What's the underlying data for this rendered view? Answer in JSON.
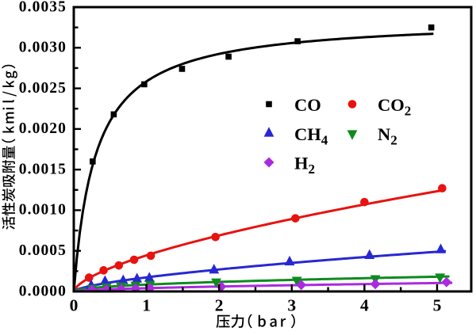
{
  "figure": {
    "background": "#ffffff",
    "axis_color": "#000000",
    "text_color": "#000000"
  },
  "chart_data": {
    "type": "scatter",
    "xlabel": "压力（bar）",
    "ylabel": "活性炭吸附量（kmil/kg）",
    "xlim": [
      0,
      5.47
    ],
    "ylim": [
      0,
      0.0035
    ],
    "x_major_ticks": [
      0,
      1,
      2,
      3,
      4,
      5
    ],
    "x_tick_labels": [
      "0",
      "1",
      "2",
      "3",
      "4",
      "5"
    ],
    "x_minor_ticks": [
      0.5,
      1.5,
      2.5,
      3.5,
      4.5
    ],
    "y_major_ticks": [
      0.0,
      0.0005,
      0.001,
      0.0015,
      0.002,
      0.0025,
      0.003,
      0.0035
    ],
    "y_tick_labels": [
      "0.0000",
      "0.0005",
      "0.0010",
      "0.0015",
      "0.0020",
      "0.0025",
      "0.0030",
      "0.0035"
    ],
    "y_minor_ticks": [
      0.00025,
      0.00075,
      0.00125,
      0.00175,
      0.00225,
      0.00275,
      0.00325
    ],
    "grid": false,
    "legend_position": "inside upper right",
    "series": [
      {
        "name": "CO",
        "legend_main": "CO",
        "legend_sub": "",
        "color": "#000000",
        "marker": "square",
        "points": [
          [
            0.26,
            0.0016
          ],
          [
            0.55,
            0.00218
          ],
          [
            0.97,
            0.00255
          ],
          [
            1.49,
            0.00274
          ],
          [
            2.13,
            0.00289
          ],
          [
            3.08,
            0.00308
          ],
          [
            4.92,
            0.00325
          ]
        ],
        "fit": {
          "model": "langmuir",
          "a": 0.011157,
          "b": 3.3155,
          "x_end": 4.95
        }
      },
      {
        "name": "CO2",
        "legend_main": "CO",
        "legend_sub": "2",
        "color": "#e8120f",
        "marker": "circle",
        "points": [
          [
            0.21,
            0.00017
          ],
          [
            0.41,
            0.00026
          ],
          [
            0.62,
            0.00032
          ],
          [
            0.83,
            0.00039
          ],
          [
            1.06,
            0.00044
          ],
          [
            1.95,
            0.00067
          ],
          [
            3.05,
            0.0009
          ],
          [
            4.0,
            0.0011
          ],
          [
            5.07,
            0.00127
          ]
        ],
        "fit": {
          "model": "freundlich",
          "k": 0.000444269,
          "n": 0.6344,
          "x_end": 5.09
        }
      },
      {
        "name": "CH4",
        "legend_main": "CH",
        "legend_sub": "4",
        "color": "#2727d4",
        "marker": "triangle-up",
        "points": [
          [
            0.24,
            7e-05
          ],
          [
            0.43,
            0.00012
          ],
          [
            0.68,
            0.00013
          ],
          [
            0.87,
            0.00015
          ],
          [
            1.04,
            0.00016
          ],
          [
            1.93,
            0.00026
          ],
          [
            2.97,
            0.00036
          ],
          [
            4.07,
            0.00044
          ],
          [
            5.05,
            0.00051
          ]
        ],
        "fit": {
          "model": "freundlich",
          "k": 0.000173202,
          "n": 0.6442,
          "x_end": 5.12
        }
      },
      {
        "name": "N2",
        "legend_main": "N",
        "legend_sub": "2",
        "color": "#0e8a1e",
        "marker": "triangle-down",
        "points": [
          [
            0.25,
            4e-05
          ],
          [
            0.45,
            6e-05
          ],
          [
            0.65,
            7e-05
          ],
          [
            0.85,
            8e-05
          ],
          [
            1.05,
            9e-05
          ],
          [
            1.96,
            0.00012
          ],
          [
            3.07,
            0.00014
          ],
          [
            4.15,
            0.00016
          ],
          [
            5.04,
            0.00018
          ]
        ],
        "fit": {
          "model": "freundlich",
          "k": 8.40409e-05,
          "n": 0.4778,
          "x_end": 5.17
        }
      },
      {
        "name": "H2",
        "legend_main": "H",
        "legend_sub": "2",
        "color": "#ab2ae0",
        "marker": "diamond",
        "points": [
          [
            0.25,
            2e-05
          ],
          [
            0.45,
            2.5e-05
          ],
          [
            0.65,
            3e-05
          ],
          [
            0.85,
            3.5e-05
          ],
          [
            1.05,
            4e-05
          ],
          [
            2.03,
            6e-05
          ],
          [
            3.13,
            8e-05
          ],
          [
            4.15,
            9e-05
          ],
          [
            5.13,
            0.000115
          ]
        ],
        "fit": {
          "model": "freundlich",
          "k": 4.03022e-05,
          "n": 0.5851,
          "x_end": 5.21
        }
      }
    ],
    "legend": [
      {
        "series": "CO"
      },
      {
        "series": "CO2"
      },
      {
        "series": "CH4"
      },
      {
        "series": "N2"
      },
      {
        "series": "H2"
      }
    ]
  }
}
